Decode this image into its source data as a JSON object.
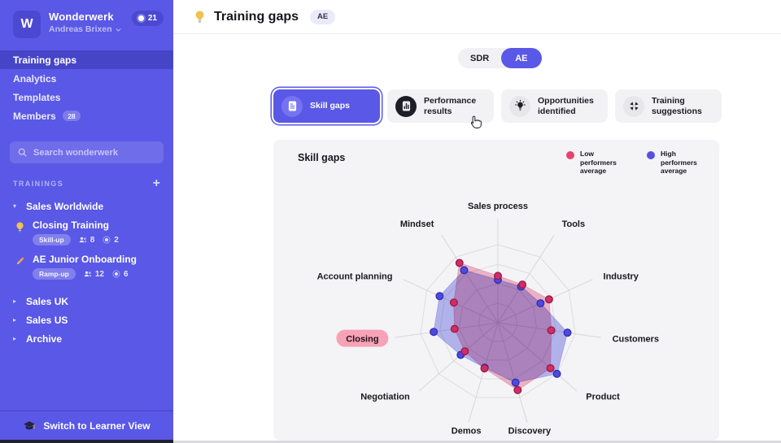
{
  "sidebar": {
    "logo_letter": "W",
    "workspace_name": "Wonderwerk",
    "user_name": "Andreas Brixen",
    "notification_count": "21",
    "nav": [
      {
        "label": "Training gaps",
        "active": true
      },
      {
        "label": "Analytics",
        "active": false
      },
      {
        "label": "Templates",
        "active": false
      },
      {
        "label": "Members",
        "active": false,
        "badge": "28"
      }
    ],
    "search_placeholder": "Search wonderwerk",
    "trainings_label": "TRAININGS",
    "add_label": "+",
    "groups": [
      {
        "label": "Sales Worldwide",
        "expanded": true,
        "items": [
          {
            "title": "Closing Training",
            "icon": "bulb",
            "badge": "Skill-up",
            "members": "8",
            "sessions": "2"
          },
          {
            "title": "AE Junior Onboarding",
            "icon": "pencil",
            "badge": "Ramp-up",
            "members": "12",
            "sessions": "6"
          }
        ]
      },
      {
        "label": "Sales UK",
        "expanded": false,
        "items": []
      },
      {
        "label": "Sales US",
        "expanded": false,
        "items": []
      },
      {
        "label": "Archive",
        "expanded": false,
        "items": []
      }
    ],
    "footer_label": "Switch to Learner View"
  },
  "header": {
    "title": "Training gaps",
    "badge": "AE"
  },
  "toggle": {
    "options": [
      "SDR",
      "AE"
    ],
    "selected": "AE"
  },
  "tabs": [
    {
      "label": "Skill gaps",
      "icon": "doc",
      "icon_bg": "#7573F1",
      "active": true
    },
    {
      "label": "Performance results",
      "icon": "chart",
      "icon_bg": "#1E1E28",
      "active": false
    },
    {
      "label": "Opportunities identified",
      "icon": "bulb-dark",
      "icon_bg": "#E7E7EA",
      "active": false
    },
    {
      "label": "Training suggestions",
      "icon": "arrows",
      "icon_bg": "#E7E7EA",
      "active": false
    }
  ],
  "panel": {
    "title": "Skill gaps",
    "legend": [
      {
        "label": "Low performers average",
        "color": "#E8436F"
      },
      {
        "label": "High performers average",
        "color": "#5552E0"
      }
    ]
  },
  "chart_data": {
    "type": "radar",
    "title": "Skill gaps",
    "categories": [
      "Sales process",
      "Tools",
      "Industry",
      "Customers",
      "Product",
      "Discovery",
      "Demos",
      "Negotiation",
      "Closing",
      "Account planning",
      "Mindset"
    ],
    "highlighted_category": "Closing",
    "scale": {
      "min": 0,
      "max": 100,
      "rings": 4
    },
    "grid": true,
    "legend_position": "top-right",
    "series": [
      {
        "name": "Low performers average",
        "point_color": "#D02E64",
        "point_stroke": "#9C1C47",
        "fill_color": "#F2A9BE",
        "values": [
          60,
          58,
          72,
          69,
          89,
          90,
          61,
          56,
          56,
          62,
          91
        ]
      },
      {
        "name": "High performers average",
        "point_color": "#4D4BDE",
        "point_stroke": "#3230B4",
        "fill_color": "#A9A9F1",
        "values": [
          55,
          55,
          60,
          90,
          100,
          80,
          60,
          63,
          83,
          82,
          80
        ]
      }
    ]
  }
}
